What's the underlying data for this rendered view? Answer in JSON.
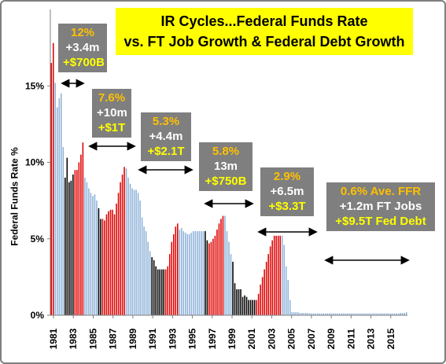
{
  "chart_data": {
    "type": "bar",
    "title_lines": [
      "IR Cycles...Federal Funds Rate",
      "vs. FT Job Growth & Federal Debt Growth"
    ],
    "ylabel": "Federal Funds Rate %",
    "xlabel": "",
    "ylim": [
      0,
      20
    ],
    "yticks": [
      0,
      5,
      10,
      15
    ],
    "ytick_labels": [
      "0%",
      "5%",
      "10%",
      "15%"
    ],
    "xtick_labels": [
      "1981",
      "1983",
      "1985",
      "1987",
      "1989",
      "1991",
      "1993",
      "1995",
      "1997",
      "1999",
      "2001",
      "2003",
      "2005",
      "2007",
      "2009",
      "2011",
      "2013",
      "2015"
    ],
    "grid": false,
    "colors": {
      "rising": "#e00000",
      "falling": "#8fb3d9",
      "low": "#000000",
      "annotation_bg": "#7f7f7f",
      "title_bg": "#ffff00",
      "avg_rate": "#ffc000",
      "debt": "#ffff00"
    },
    "series": [
      {
        "values": [
          16.5,
          17.8,
          15.2,
          13.6,
          14.2,
          14.5,
          11.0,
          9.0,
          10.3,
          8.7,
          8.8,
          9.2,
          9.5,
          9.5,
          10.0,
          10.5,
          11.3,
          9.0,
          8.7,
          8.3,
          8.0,
          7.8,
          7.9,
          7.5,
          7.0,
          6.3,
          6.3,
          6.2,
          6.6,
          6.8,
          6.9,
          6.9,
          6.6,
          7.3,
          8.0,
          8.7,
          9.2,
          9.7,
          9.6,
          9.0,
          8.6,
          8.3,
          8.2,
          8.2,
          8.0,
          7.5,
          6.4,
          5.8,
          5.5,
          4.8,
          4.2,
          3.8,
          3.6,
          3.2,
          3.0,
          3.0,
          3.0,
          3.0,
          3.0,
          3.2,
          4.0,
          4.8,
          5.3,
          5.8,
          6.0,
          5.6,
          5.7,
          5.5,
          5.4,
          5.3,
          5.3,
          5.4,
          5.5,
          5.5,
          5.5,
          5.5,
          5.5,
          5.5,
          5.5,
          4.9,
          4.7,
          4.8,
          5.0,
          5.2,
          5.6,
          6.0,
          6.3,
          6.5,
          6.5,
          5.5,
          4.8,
          4.0,
          3.5,
          2.1,
          1.7,
          1.7,
          1.7,
          1.2,
          1.3,
          1.2,
          1.0,
          1.0,
          1.0,
          1.0,
          1.0,
          1.4,
          2.0,
          2.5,
          3.0,
          3.5,
          4.0,
          4.5,
          4.9,
          5.2,
          5.2,
          5.2,
          5.2,
          5.2,
          4.6,
          3.2,
          2.3,
          1.0,
          0.2,
          0.2,
          0.2,
          0.2,
          0.15,
          0.15,
          0.15,
          0.15,
          0.15,
          0.12,
          0.12,
          0.12,
          0.12,
          0.12,
          0.12,
          0.12,
          0.12,
          0.12,
          0.12,
          0.12,
          0.12,
          0.12,
          0.12,
          0.12,
          0.12,
          0.12,
          0.12,
          0.12,
          0.12,
          0.12,
          0.12,
          0.12,
          0.12,
          0.12,
          0.12,
          0.12,
          0.12,
          0.12,
          0.12,
          0.12,
          0.12,
          0.12,
          0.12,
          0.12,
          0.12,
          0.12,
          0.12,
          0.12,
          0.12,
          0.12,
          0.12,
          0.12,
          0.12,
          0.12,
          0.12,
          0.15,
          0.15,
          0.15,
          0.2
        ]
      }
    ],
    "annotations": [
      {
        "rate": "12%",
        "jobs": "+3.4m",
        "debt": "+$700B"
      },
      {
        "rate": "7.6%",
        "jobs": "+10m",
        "debt": "+$1T"
      },
      {
        "rate": "5.3%",
        "jobs": "+4.4m",
        "debt": "+$2.1T"
      },
      {
        "rate": "5.8%",
        "jobs": "13m",
        "debt": "+$750B"
      },
      {
        "rate": "2.9%",
        "jobs": "+6.5m",
        "debt": "+$3.3T"
      },
      {
        "rate": "0.6% Ave. FFR",
        "jobs": "+1.2m FT Jobs",
        "debt": "+$9.5T Fed Debt"
      }
    ]
  }
}
